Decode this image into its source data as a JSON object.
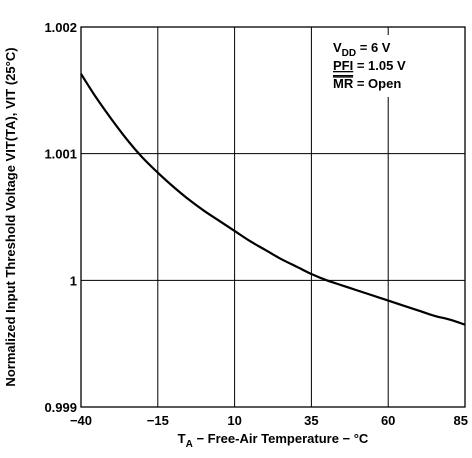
{
  "chart_data": {
    "type": "line",
    "xlabel": "T",
    "xlabel_sub": "A",
    "xlabel_rest": " − Free-Air Temperature − °C",
    "ylabel": "Normalized Input Threshold Voltage VIT(TA), VIT (25°C)",
    "xlim": [
      -40,
      85
    ],
    "ylim": [
      0.999,
      1.002
    ],
    "x_ticks": [
      -40,
      -15,
      10,
      35,
      60,
      85
    ],
    "x_tick_labels": [
      "−40",
      "−15",
      "10",
      "35",
      "60",
      "85"
    ],
    "y_ticks": [
      0.999,
      1.0,
      1.001,
      1.002
    ],
    "y_tick_labels": [
      "0.999",
      "1",
      "1.001",
      "1.002"
    ],
    "grid": true,
    "series": [
      {
        "x": [
          -40,
          -35,
          -30,
          -25,
          -20,
          -15,
          -10,
          -5,
          0,
          5,
          10,
          15,
          20,
          25,
          30,
          35,
          40,
          45,
          50,
          55,
          60,
          65,
          70,
          75,
          80,
          85
        ],
        "y": [
          1.00163,
          1.00144,
          1.00127,
          1.00111,
          1.00097,
          1.00085,
          1.00074,
          1.00064,
          1.00055,
          1.00047,
          1.00039,
          1.00031,
          1.00024,
          1.00017,
          1.00011,
          1.00005,
          1.0,
          0.99996,
          0.99992,
          0.99988,
          0.99984,
          0.9998,
          0.99976,
          0.99972,
          0.99969,
          0.99965
        ]
      }
    ],
    "legend_lines": [
      {
        "main": "V",
        "sub": "DD",
        "rest": " = 6 V",
        "overline": false,
        "underline": false
      },
      {
        "main": "PFI",
        "sub": "",
        "rest": " = 1.05 V",
        "overline": false,
        "underline": true
      },
      {
        "main": "MR",
        "sub": "",
        "rest": " = Open",
        "overline": true,
        "underline": false
      }
    ]
  }
}
